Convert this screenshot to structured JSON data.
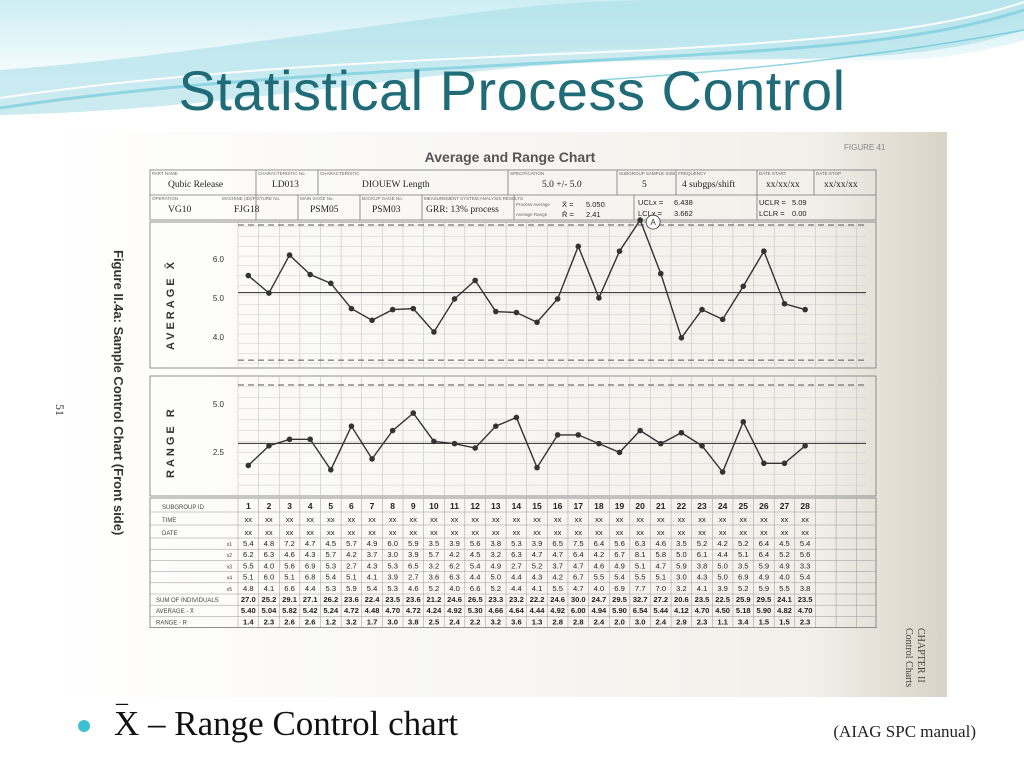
{
  "slide": {
    "title": "Statistical Process Control",
    "bullet": "X – Range Control chart",
    "bullet_bar": "_",
    "citation": "(AIAG SPC manual)"
  },
  "colors": {
    "title": "#1f6b78",
    "bullet": "#3ec0d0",
    "wave_light": "#b9e6ee",
    "wave_mid": "#7fd0df"
  },
  "form": {
    "title": "Average and Range Chart",
    "corner_code": "FIGURE 41",
    "side_caption": "Figure II.4a: Sample Control Chart  (Front side)",
    "page_number": "51",
    "chapter_label": "CHAPTER II",
    "chapter_sub": "Control Charts",
    "header_row1": {
      "part_name_label": "PART NAME",
      "part_name": "Qubic Release",
      "char_no_label": "CHARACTERISTIC No.",
      "char_no": "LD013",
      "characteristic_label": "CHARACTERISTIC",
      "characteristic": "DIOUEW Length",
      "spec_label": "SPECIFICATION",
      "spec": "5.0 +/- 5.0",
      "subgroup_size_label": "SUBGROUP SAMPLE SIZE",
      "subgroup_size": "5",
      "frequency_label": "FREQUENCY",
      "frequency": "4 subgps/shift",
      "date_start_label": "DATE START",
      "date_start": "xx/xx/xx",
      "date_stop_label": "DATE STOP",
      "date_stop": "xx/xx/xx"
    },
    "header_row2": {
      "operation_label": "OPERATION",
      "operation": "VG10",
      "machine_label": "MACHINE (ID)/FIXTURE No.",
      "machine": "FJG18",
      "gage_label": "MAIN GAGE No.",
      "gage": "PSM05",
      "backup_gage_label": "BACKUP GAGE No.",
      "backup_gage": "PSM03",
      "msa_label": "MEASUREMENT SYSTEM ANALYSIS RESULTS",
      "msa": "GRR: 13% process",
      "proc_avg_label": "Process Average",
      "proc_avg_sym": "X̄ =",
      "proc_avg": "5.050",
      "avg_range_label": "Average Range",
      "avg_range_sym": "R̄ =",
      "avg_range": "2.41",
      "ucl_x_label": "UCLx =",
      "ucl_x": "6.438",
      "lcl_x_label": "LCLx =",
      "lcl_x": "3.662",
      "ucl_r_label": "UCLR =",
      "ucl_r": "5.09",
      "lcl_r_label": "LCLR =",
      "lcl_r": "0.00"
    },
    "avg_chart_label": "AVERAGE X̄",
    "range_chart_label": "RANGE R",
    "avg_ticks": [
      "6.0",
      "5.0",
      "4.0"
    ],
    "range_ticks": [
      "5.0",
      "2.5"
    ],
    "annotation": "A",
    "table_labels": {
      "subgroup_id": "SUBGROUP ID",
      "time": "TIME",
      "date": "DATE",
      "x1": "x1",
      "x2": "x2",
      "x3": "x3",
      "x4": "x4",
      "x5": "x5",
      "sum": "SUM OF INDIVIDUALS",
      "average": "AVERAGE - X̄",
      "range": "RANGE - R"
    },
    "time_value": "xx",
    "date_value": "xx"
  },
  "chart_data": {
    "type": "line",
    "title": "Average and Range Chart",
    "x": [
      1,
      2,
      3,
      4,
      5,
      6,
      7,
      8,
      9,
      10,
      11,
      12,
      13,
      14,
      15,
      16,
      17,
      18,
      19,
      20,
      21,
      22,
      23,
      24,
      25,
      26,
      27,
      28
    ],
    "series": [
      {
        "name": "AVERAGE X̄",
        "values": [
          5.4,
          5.04,
          5.82,
          5.42,
          5.24,
          4.72,
          4.48,
          4.7,
          4.72,
          4.24,
          4.92,
          5.3,
          4.66,
          4.64,
          4.44,
          4.92,
          6.0,
          4.94,
          5.9,
          6.54,
          5.44,
          4.12,
          4.7,
          4.5,
          5.18,
          5.9,
          4.82,
          4.7
        ]
      },
      {
        "name": "RANGE R",
        "values": [
          1.4,
          2.3,
          2.6,
          2.6,
          1.2,
          3.2,
          1.7,
          3.0,
          3.8,
          2.5,
          2.4,
          2.2,
          3.2,
          3.6,
          1.3,
          2.8,
          2.8,
          2.4,
          2.0,
          3.0,
          2.4,
          2.9,
          2.3,
          1.1,
          3.4,
          1.5,
          1.5,
          2.3
        ]
      }
    ],
    "x1": [
      5.4,
      4.8,
      7.2,
      4.7,
      4.5,
      5.7,
      4.9,
      6.0,
      5.9,
      3.5,
      3.9,
      5.6,
      3.8,
      5.3,
      3.9,
      6.5,
      7.5,
      6.4,
      5.6,
      6.3,
      4.6,
      3.5,
      5.2,
      4.2,
      5.2,
      6.4,
      4.5,
      5.4
    ],
    "x2": [
      6.2,
      6.3,
      4.6,
      4.3,
      5.7,
      4.2,
      3.7,
      3.0,
      3.9,
      5.7,
      4.2,
      4.5,
      3.2,
      6.3,
      4.7,
      4.7,
      6.4,
      4.2,
      6.7,
      8.1,
      5.8,
      5.0,
      6.1,
      4.4,
      5.1,
      6.4,
      5.2,
      5.6
    ],
    "x3": [
      5.5,
      4.0,
      5.6,
      6.9,
      5.3,
      2.7,
      4.3,
      5.3,
      6.5,
      3.2,
      6.2,
      5.4,
      4.9,
      2.7,
      5.2,
      3.7,
      4.7,
      4.6,
      4.9,
      5.1,
      4.7,
      5.9,
      3.8,
      5.0,
      3.5,
      5.9,
      4.9,
      3.3
    ],
    "x4": [
      5.1,
      6.0,
      5.1,
      6.8,
      5.4,
      5.1,
      4.1,
      3.9,
      2.7,
      3.6,
      6.3,
      4.4,
      5.0,
      4.4,
      4.3,
      4.2,
      6.7,
      5.5,
      5.4,
      5.5,
      5.1,
      3.0,
      4.3,
      5.0,
      6.9,
      4.9,
      4.0,
      5.4
    ],
    "x5": [
      4.8,
      4.1,
      6.6,
      4.4,
      5.3,
      5.9,
      5.4,
      5.3,
      4.6,
      5.2,
      4.0,
      6.6,
      5.2,
      4.4,
      4.1,
      5.5,
      4.7,
      4.0,
      6.9,
      7.7,
      7.0,
      3.2,
      4.1,
      3.9,
      5.2,
      5.9,
      5.5,
      3.8
    ],
    "sum": [
      27.0,
      25.2,
      29.1,
      27.1,
      26.2,
      23.6,
      22.4,
      23.5,
      23.6,
      21.2,
      24.6,
      26.5,
      23.3,
      23.2,
      22.2,
      24.6,
      30.0,
      24.7,
      29.5,
      32.7,
      27.2,
      20.6,
      23.5,
      22.5,
      25.9,
      29.5,
      24.1,
      23.5
    ],
    "ucl_x": 6.438,
    "center_x": 5.05,
    "lcl_x": 3.662,
    "ucl_r": 5.09,
    "center_r": 2.41,
    "lcl_r": 0.0,
    "avg_ylim": [
      3.5,
      6.5
    ],
    "range_ylim": [
      0,
      5.5
    ],
    "xlabel": "SUBGROUP ID",
    "ylabel": "AVERAGE X̄ / RANGE R",
    "grid": true
  }
}
